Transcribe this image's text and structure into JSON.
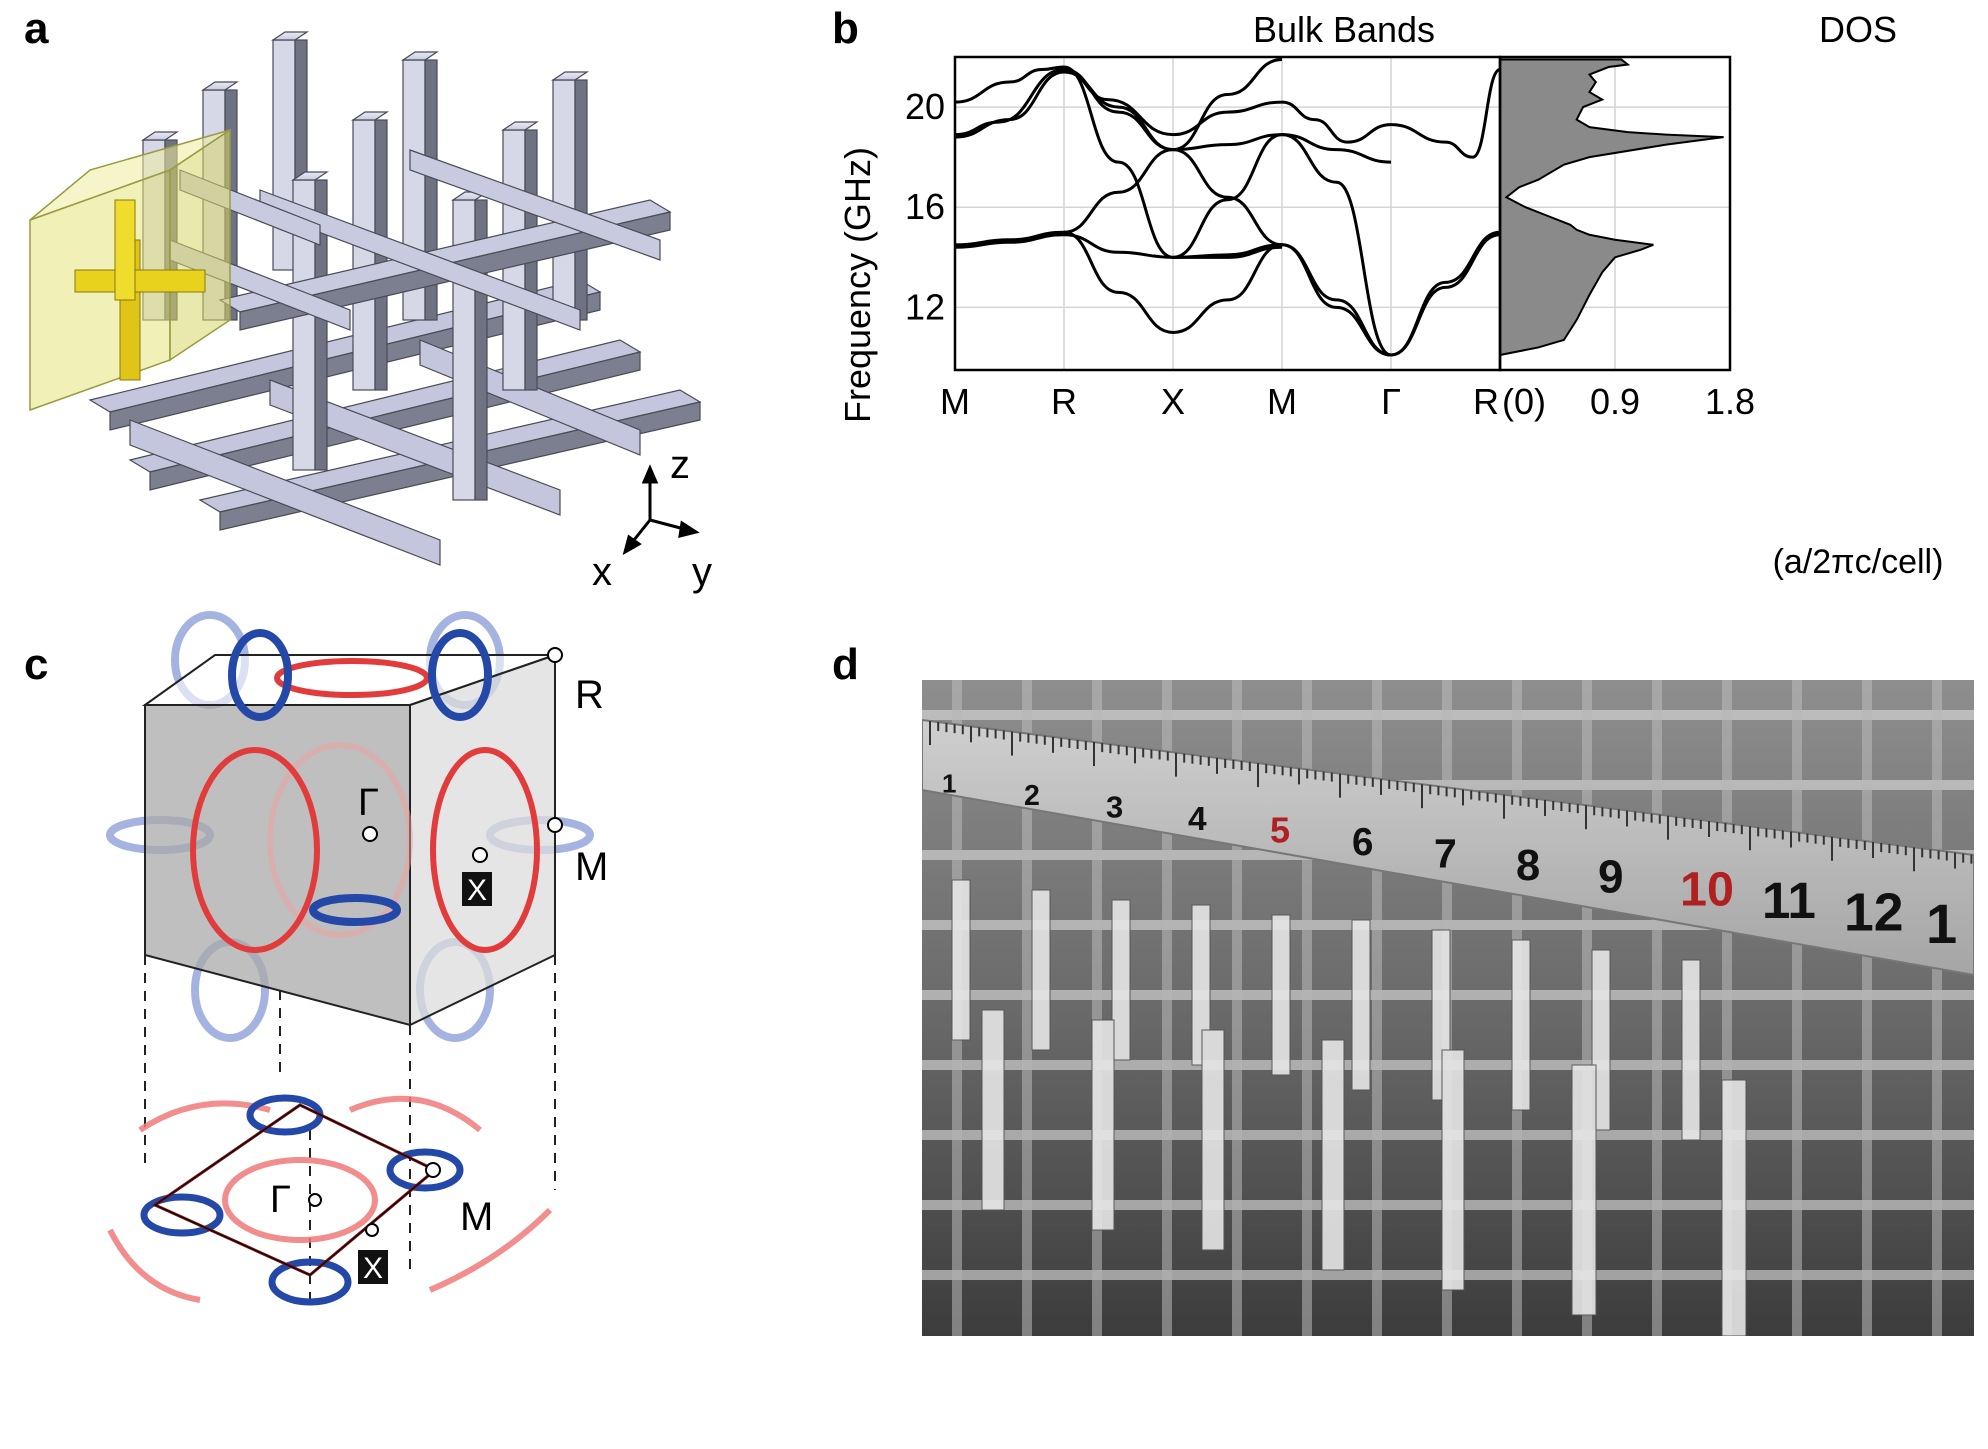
{
  "panels": {
    "a": {
      "label": "a",
      "axes": {
        "z": "z",
        "x": "x",
        "y": "y"
      }
    },
    "b": {
      "label": "b"
    },
    "c": {
      "label": "c",
      "points": {
        "R": "R",
        "Gamma": "Γ",
        "M": "M",
        "X": "X",
        "Gamma_proj": "Γ",
        "M_proj": "M",
        "X_proj": "X"
      }
    },
    "d": {
      "label": "d",
      "ruler_numbers": [
        "1",
        "2",
        "3",
        "4",
        "5",
        "6",
        "7",
        "8",
        "9",
        "10",
        "11",
        "12",
        "1"
      ],
      "ruler_red": [
        "5",
        "10"
      ]
    }
  },
  "colors": {
    "red_loop": "#e23b3b",
    "blue_loop": "#2448a8",
    "cell_yellow": "#d8d84a",
    "rod": "#b8bcd6",
    "dos_fill": "#8a8a8a"
  },
  "chart_data": [
    {
      "type": "line",
      "title": "Bulk Bands",
      "ylabel": "Frequency (GHz)",
      "xlabel": "",
      "ylim": [
        9.5,
        22
      ],
      "yticks": [
        12,
        16,
        20
      ],
      "x_ticks": [
        "M",
        "R",
        "X",
        "M",
        "Γ",
        "R"
      ],
      "grid": true,
      "series": [
        {
          "values": [
            [
              0,
              20.2
            ],
            [
              0.5,
              21
            ],
            [
              0.8,
              21.5
            ],
            [
              1,
              21.6
            ]
          ]
        },
        {
          "values": [
            [
              0,
              18.9
            ],
            [
              0.4,
              19.4
            ],
            [
              1,
              21.5
            ],
            [
              1.4,
              20.3
            ],
            [
              2,
              18.9
            ],
            [
              2.5,
              19.8
            ],
            [
              3,
              20.2
            ],
            [
              3.3,
              19.5
            ],
            [
              3.6,
              18.6
            ],
            [
              4,
              19.3
            ],
            [
              4.5,
              18.6
            ],
            [
              4.75,
              18.0
            ],
            [
              5,
              21.5
            ]
          ]
        },
        {
          "values": [
            [
              0,
              18.8
            ],
            [
              0.5,
              19.5
            ],
            [
              1,
              21.4
            ],
            [
              1.5,
              20.0
            ],
            [
              2,
              18.3
            ],
            [
              2.5,
              18.5
            ],
            [
              3,
              18.9
            ],
            [
              3.5,
              18.3
            ],
            [
              4,
              17.8
            ]
          ]
        },
        {
          "values": [
            [
              0,
              14.4
            ],
            [
              0.5,
              14.6
            ],
            [
              1,
              14.9
            ],
            [
              1.5,
              14.2
            ],
            [
              2,
              14.0
            ],
            [
              2.5,
              14.0
            ],
            [
              3,
              14.4
            ]
          ]
        },
        {
          "values": [
            [
              0,
              14.5
            ],
            [
              0.5,
              14.7
            ],
            [
              1,
              15.0
            ],
            [
              1.5,
              12.6
            ],
            [
              2,
              11.0
            ],
            [
              2.5,
              12.3
            ],
            [
              3,
              14.5
            ],
            [
              3.5,
              12.0
            ],
            [
              4,
              10.1
            ],
            [
              4.5,
              13.0
            ],
            [
              5,
              15.0
            ]
          ]
        },
        {
          "values": [
            [
              1,
              15.0
            ],
            [
              1.5,
              16.6
            ],
            [
              2,
              18.3
            ],
            [
              2.5,
              16.4
            ],
            [
              3,
              14.5
            ],
            [
              3.5,
              12.3
            ],
            [
              4,
              10.1
            ],
            [
              4.5,
              12.8
            ],
            [
              5,
              14.9
            ]
          ]
        },
        {
          "values": [
            [
              1,
              21.5
            ],
            [
              1.5,
              19.8
            ],
            [
              2,
              18.3
            ],
            [
              2.5,
              20.5
            ],
            [
              3,
              21.9
            ]
          ]
        },
        {
          "values": [
            [
              2,
              14.0
            ],
            [
              2.5,
              16.3
            ],
            [
              3,
              18.9
            ],
            [
              3.5,
              17.0
            ],
            [
              4,
              10.1
            ]
          ]
        },
        {
          "values": [
            [
              1,
              21.6
            ],
            [
              1.5,
              17.8
            ],
            [
              2,
              14.0
            ],
            [
              2.5,
              14.1
            ],
            [
              3,
              14.5
            ]
          ]
        }
      ]
    },
    {
      "type": "area",
      "title": "DOS",
      "xlabel": "(a/2πc/cell)",
      "xticks": [
        "(0)",
        "0.9",
        "1.8"
      ],
      "xlim": [
        0,
        1.8
      ],
      "ylim": [
        9.5,
        22
      ],
      "grid": true,
      "points": [
        [
          0,
          10.1
        ],
        [
          0.3,
          10.4
        ],
        [
          0.5,
          10.7
        ],
        [
          0.6,
          11.5
        ],
        [
          0.7,
          12.5
        ],
        [
          0.8,
          13.4
        ],
        [
          0.9,
          14.0
        ],
        [
          1.1,
          14.3
        ],
        [
          1.2,
          14.5
        ],
        [
          0.9,
          14.7
        ],
        [
          0.7,
          14.9
        ],
        [
          0.6,
          15.1
        ],
        [
          0.55,
          15.3
        ],
        [
          0.4,
          15.6
        ],
        [
          0.2,
          16.0
        ],
        [
          0.05,
          16.4
        ],
        [
          0.15,
          16.8
        ],
        [
          0.3,
          17.1
        ],
        [
          0.4,
          17.4
        ],
        [
          0.5,
          17.7
        ],
        [
          0.7,
          18.0
        ],
        [
          1.3,
          18.5
        ],
        [
          1.75,
          18.8
        ],
        [
          1.3,
          18.9
        ],
        [
          1.0,
          19.0
        ],
        [
          0.7,
          19.2
        ],
        [
          0.6,
          19.5
        ],
        [
          0.65,
          20.0
        ],
        [
          0.8,
          20.3
        ],
        [
          0.7,
          20.6
        ],
        [
          0.75,
          21.0
        ],
        [
          0.7,
          21.3
        ],
        [
          0.85,
          21.6
        ],
        [
          1.0,
          21.7
        ],
        [
          0.95,
          21.9
        ],
        [
          0,
          21.9
        ]
      ]
    }
  ]
}
